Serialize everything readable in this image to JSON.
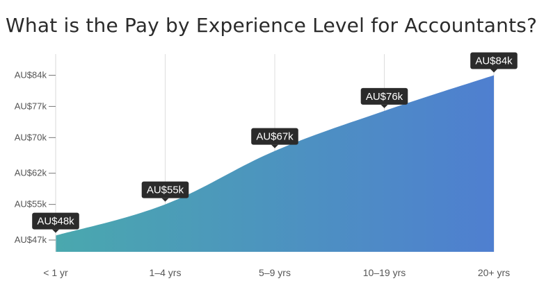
{
  "title": "What is the Pay by Experience Level for Accountants?",
  "chart_data": {
    "type": "area",
    "title": "What is the Pay by Experience Level for Accountants?",
    "xlabel": "",
    "ylabel": "",
    "categories": [
      "< 1 yr",
      "1–4 yrs",
      "5–9 yrs",
      "10–19 yrs",
      "20+ yrs"
    ],
    "values": [
      48,
      55,
      67,
      76,
      84
    ],
    "data_labels": [
      "AU$48k",
      "AU$55k",
      "AU$67k",
      "AU$76k",
      "AU$84k"
    ],
    "y_ticks": [
      {
        "value": 47,
        "label": "AU$47k"
      },
      {
        "value": 55,
        "label": "AU$55k"
      },
      {
        "value": 62,
        "label": "AU$62k"
      },
      {
        "value": 70,
        "label": "AU$70k"
      },
      {
        "value": 77,
        "label": "AU$77k"
      },
      {
        "value": 84,
        "label": "AU$84k"
      }
    ],
    "ylim": [
      45,
      85
    ],
    "grid": "vertical",
    "legend": "none",
    "colors": {
      "fill_start": "#4aa8ae",
      "fill_end": "#4f7fd0",
      "label_bg": "#2b2b2b",
      "label_text": "#ffffff",
      "grid": "#dddddd"
    }
  }
}
